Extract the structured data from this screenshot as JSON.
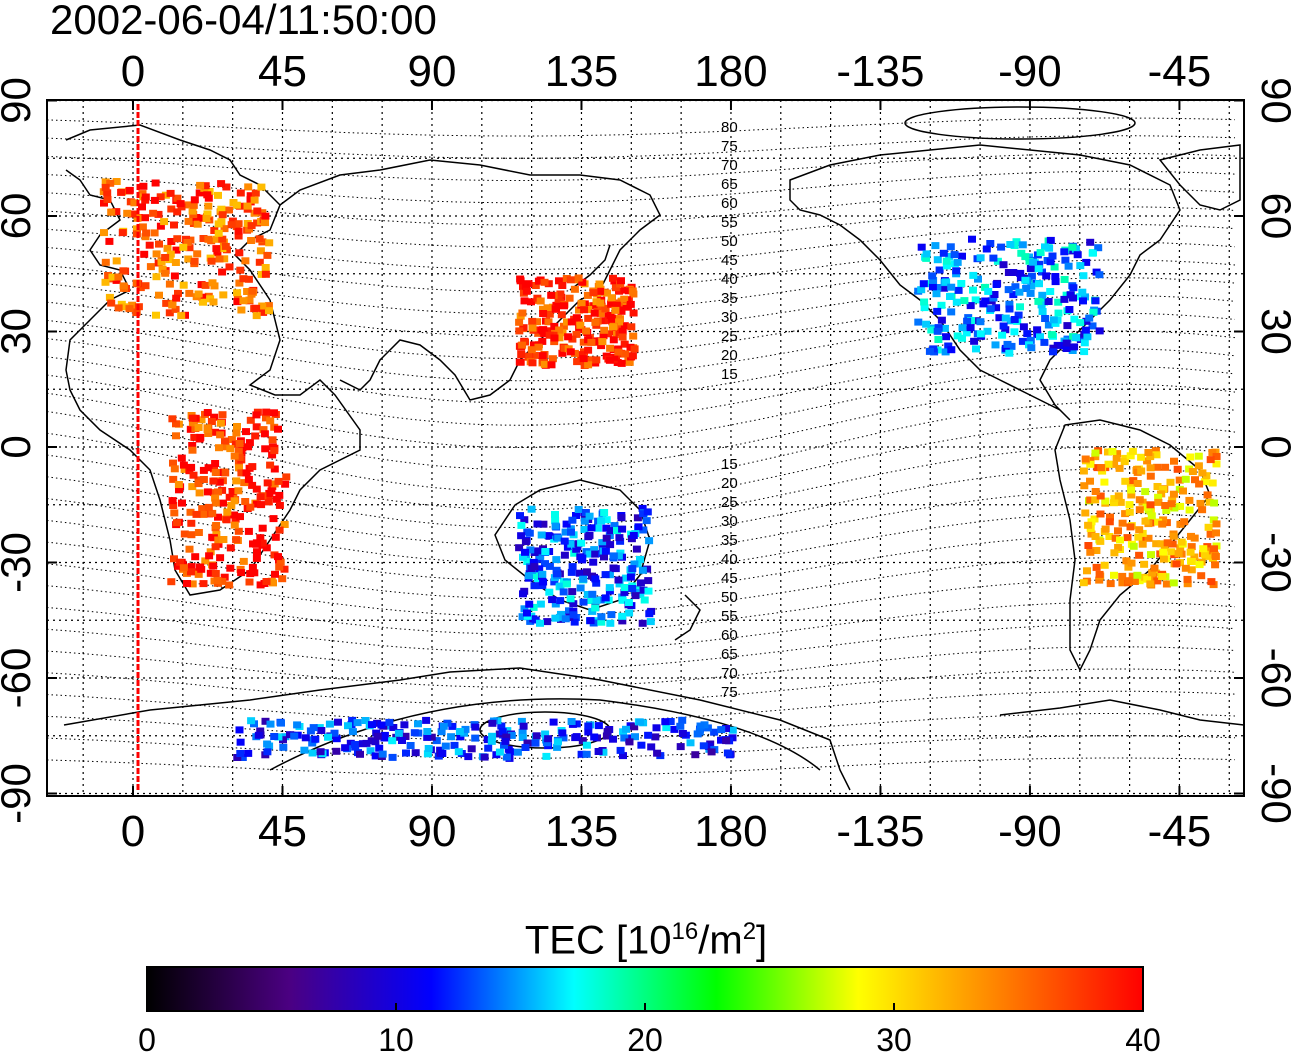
{
  "map": {
    "timestamp": "2002-06-04/11:50:00",
    "top_axis_ticks": [
      "0",
      "45",
      "90",
      "135",
      "180",
      "-135",
      "-90",
      "-45"
    ],
    "bottom_axis_ticks": [
      "0",
      "45",
      "90",
      "135",
      "180",
      "-135",
      "-90",
      "-45"
    ],
    "left_axis_ticks": [
      "90",
      "60",
      "30",
      "0",
      "-30",
      "-60",
      "-90"
    ],
    "right_axis_ticks": [
      "90",
      "60",
      "30",
      "0",
      "-30",
      "-60",
      "-90"
    ],
    "contour_labels_north": [
      "80",
      "75",
      "70",
      "65",
      "60",
      "55",
      "50",
      "45",
      "40",
      "35",
      "30",
      "25",
      "20",
      "15"
    ],
    "contour_labels_south": [
      "15",
      "20",
      "25",
      "30",
      "35",
      "40",
      "45",
      "50",
      "55",
      "60",
      "65",
      "70",
      "75"
    ],
    "marker_line_longitude": 1,
    "tec_clusters": [
      {
        "region": "europe",
        "lon": [
          -10,
          40
        ],
        "lat": [
          35,
          70
        ],
        "tec": 36
      },
      {
        "region": "east-asia",
        "lon": [
          115,
          150
        ],
        "lat": [
          22,
          45
        ],
        "tec": 38
      },
      {
        "region": "north-america",
        "lon": [
          -125,
          -70
        ],
        "lat": [
          25,
          55
        ],
        "tec": 14
      },
      {
        "region": "australia",
        "lon": [
          115,
          155
        ],
        "lat": [
          -45,
          -15
        ],
        "tec": 13
      },
      {
        "region": "africa",
        "lon": [
          10,
          45
        ],
        "lat": [
          -35,
          10
        ],
        "tec": 38
      },
      {
        "region": "south-america",
        "lon": [
          -75,
          -35
        ],
        "lat": [
          -35,
          0
        ],
        "tec": 32
      },
      {
        "region": "antarctica",
        "lon": [
          30,
          180
        ],
        "lat": [
          -80,
          -70
        ],
        "tec": 12
      }
    ]
  },
  "colorbar": {
    "label_text": "TEC  [10",
    "label_exp1": "16",
    "label_mid": "/m",
    "label_exp2": "2",
    "label_end": "]",
    "ticks": [
      "0",
      "10",
      "20",
      "30",
      "40"
    ],
    "range": [
      0,
      40
    ],
    "colors": [
      "#000000",
      "#4b0082",
      "#0000ff",
      "#00ffff",
      "#00ff00",
      "#ffff00",
      "#ff8000",
      "#ff0000"
    ]
  }
}
